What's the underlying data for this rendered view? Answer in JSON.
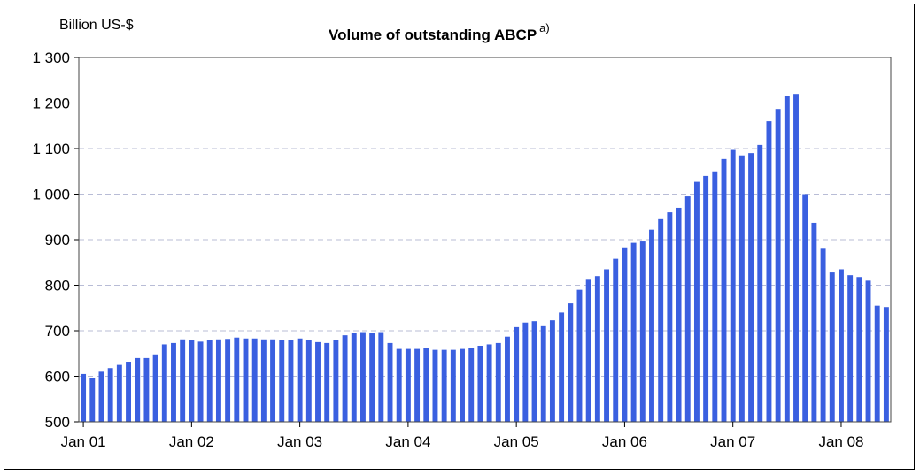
{
  "chart_data": {
    "type": "bar",
    "title": "Volume of outstanding ABCP",
    "title_superscript": "a)",
    "unit_label": "Billion US-$",
    "ylim": [
      500,
      1300
    ],
    "yticks": [
      "500",
      "600",
      "700",
      "800",
      "900",
      "1 000",
      "1 100",
      "1 200",
      "1 300"
    ],
    "ytick_values": [
      500,
      600,
      700,
      800,
      900,
      1000,
      1100,
      1200,
      1300
    ],
    "xticks": [
      {
        "label": "Jan 01",
        "index": 0
      },
      {
        "label": "Jan 02",
        "index": 12
      },
      {
        "label": "Jan 03",
        "index": 24
      },
      {
        "label": "Jan 04",
        "index": 36
      },
      {
        "label": "Jan 05",
        "index": 48
      },
      {
        "label": "Jan 06",
        "index": 60
      },
      {
        "label": "Jan 07",
        "index": 72
      },
      {
        "label": "Jan 08",
        "index": 84
      }
    ],
    "grid": "horizontal dashed",
    "bar_color": "#3a5fe0",
    "grid_color": "#b8bcd6",
    "categories": [
      "Jan 01",
      "Feb 01",
      "Mar 01",
      "Apr 01",
      "May 01",
      "Jun 01",
      "Jul 01",
      "Aug 01",
      "Sep 01",
      "Oct 01",
      "Nov 01",
      "Dec 01",
      "Jan 02",
      "Feb 02",
      "Mar 02",
      "Apr 02",
      "May 02",
      "Jun 02",
      "Jul 02",
      "Aug 02",
      "Sep 02",
      "Oct 02",
      "Nov 02",
      "Dec 02",
      "Jan 03",
      "Feb 03",
      "Mar 03",
      "Apr 03",
      "May 03",
      "Jun 03",
      "Jul 03",
      "Aug 03",
      "Sep 03",
      "Oct 03",
      "Nov 03",
      "Dec 03",
      "Jan 04",
      "Feb 04",
      "Mar 04",
      "Apr 04",
      "May 04",
      "Jun 04",
      "Jul 04",
      "Aug 04",
      "Sep 04",
      "Oct 04",
      "Nov 04",
      "Dec 04",
      "Jan 05",
      "Feb 05",
      "Mar 05",
      "Apr 05",
      "May 05",
      "Jun 05",
      "Jul 05",
      "Aug 05",
      "Sep 05",
      "Oct 05",
      "Nov 05",
      "Dec 05",
      "Jan 06",
      "Feb 06",
      "Mar 06",
      "Apr 06",
      "May 06",
      "Jun 06",
      "Jul 06",
      "Aug 06",
      "Sep 06",
      "Oct 06",
      "Nov 06",
      "Dec 06",
      "Jan 07",
      "Feb 07",
      "Mar 07",
      "Apr 07",
      "May 07",
      "Jun 07",
      "Jul 07",
      "Aug 07",
      "Sep 07",
      "Oct 07",
      "Nov 07",
      "Dec 07",
      "Jan 08",
      "Feb 08",
      "Mar 08",
      "Apr 08",
      "May 08",
      "Jun 08"
    ],
    "values": [
      605,
      597,
      610,
      618,
      625,
      632,
      640,
      640,
      648,
      670,
      673,
      681,
      680,
      676,
      680,
      681,
      682,
      685,
      683,
      683,
      681,
      681,
      680,
      680,
      683,
      679,
      675,
      673,
      679,
      690,
      695,
      697,
      695,
      697,
      673,
      660,
      660,
      660,
      663,
      658,
      658,
      658,
      660,
      662,
      667,
      670,
      673,
      687,
      708,
      718,
      721,
      710,
      723,
      740,
      760,
      790,
      812,
      820,
      835,
      858,
      883,
      893,
      896,
      922,
      945,
      960,
      970,
      995,
      1027,
      1040,
      1050,
      1077,
      1097,
      1085,
      1090,
      1108,
      1160,
      1187,
      1215,
      1220,
      1000,
      937,
      880,
      828,
      835,
      822,
      818,
      810,
      755,
      752
    ]
  }
}
